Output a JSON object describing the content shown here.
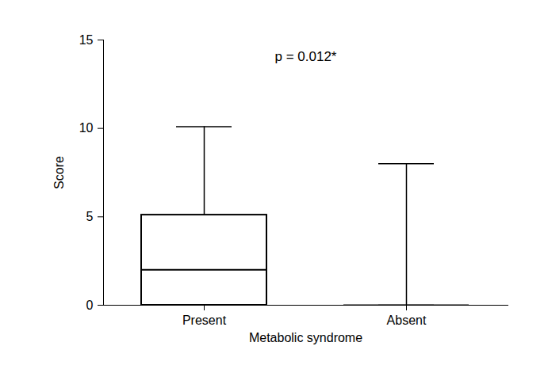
{
  "chart_data": {
    "type": "box",
    "x_label": "Metabolic syndrome",
    "y_label": "Score",
    "annotation": "p = 0.012*",
    "categories": [
      "Present",
      "Absent"
    ],
    "min": [
      0,
      0
    ],
    "q1": [
      0,
      0
    ],
    "median": [
      2,
      0
    ],
    "q3": [
      5.1,
      0
    ],
    "max": [
      10.1,
      8
    ],
    "color": "#000000",
    "ylim": [
      0,
      15
    ],
    "yticks": [
      0,
      5,
      10,
      15
    ],
    "grid": false
  }
}
